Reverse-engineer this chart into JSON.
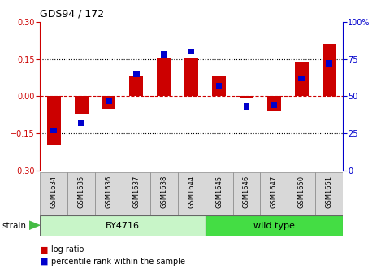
{
  "title": "GDS94 / 172",
  "samples": [
    "GSM1634",
    "GSM1635",
    "GSM1636",
    "GSM1637",
    "GSM1638",
    "GSM1644",
    "GSM1645",
    "GSM1646",
    "GSM1647",
    "GSM1650",
    "GSM1651"
  ],
  "log_ratio": [
    -0.2,
    -0.07,
    -0.05,
    0.08,
    0.155,
    0.155,
    0.08,
    -0.01,
    -0.06,
    0.14,
    0.21
  ],
  "percentile_rank": [
    27,
    32,
    47,
    65,
    78,
    80,
    57,
    43,
    44,
    62,
    72
  ],
  "ylim_left": [
    -0.3,
    0.3
  ],
  "ylim_right": [
    0,
    100
  ],
  "left_yticks": [
    -0.3,
    -0.15,
    0,
    0.15,
    0.3
  ],
  "right_yticks": [
    0,
    25,
    50,
    75,
    100
  ],
  "log_color": "#CC0000",
  "percentile_color": "#0000CC",
  "zero_line_color": "#CC0000",
  "background_color": "#FFFFFF",
  "strain_groups": [
    {
      "label": "BY4716",
      "start": 0,
      "end": 6,
      "color": "#C8F5C8"
    },
    {
      "label": "wild type",
      "start": 6,
      "end": 11,
      "color": "#44DD44"
    }
  ],
  "legend_items": [
    "log ratio",
    "percentile rank within the sample"
  ],
  "bar_width": 0.5,
  "blue_bar_width": 0.15,
  "blue_bar_height": 0.025
}
